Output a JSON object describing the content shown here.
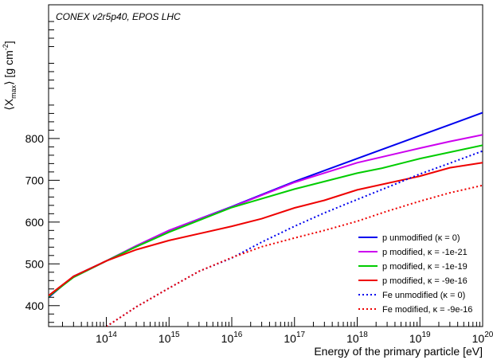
{
  "chart_data": {
    "type": "line",
    "title": "",
    "annotation": "CONEX v2r5p40, EPOS LHC",
    "xlabel": "Energy of the primary particle [eV]",
    "ylabel": "⟨X_max⟩ [g cm⁻²]",
    "ylabel_parts": {
      "open": "⟨X",
      "sub": "max",
      "close": "⟩ [g cm",
      "sup": "-2",
      "end": "]"
    },
    "x_scale": "log",
    "xlim": [
      12000000000000.0,
      1e+20
    ],
    "ylim": [
      350,
      1120
    ],
    "x_ticks": [
      {
        "value": 100000000000000.0,
        "base": "10",
        "exp": "14"
      },
      {
        "value": 1000000000000000.0,
        "base": "10",
        "exp": "15"
      },
      {
        "value": 1e+16,
        "base": "10",
        "exp": "16"
      },
      {
        "value": 1e+17,
        "base": "10",
        "exp": "17"
      },
      {
        "value": 1e+18,
        "base": "10",
        "exp": "18"
      },
      {
        "value": 1e+19,
        "base": "10",
        "exp": "19"
      },
      {
        "value": 1e+20,
        "base": "10",
        "exp": "20"
      }
    ],
    "y_ticks": [
      {
        "value": 400,
        "label": "400"
      },
      {
        "value": 500,
        "label": "500"
      },
      {
        "value": 600,
        "label": "600"
      },
      {
        "value": 700,
        "label": "700"
      },
      {
        "value": 800,
        "label": "800"
      }
    ],
    "grid": false,
    "legend_position": "bottom-right",
    "series": [
      {
        "name": "p unmodified (κ = 0)",
        "color": "#0000ee",
        "dash": "solid",
        "points": [
          [
            12000000000000.0,
            420
          ],
          [
            30000000000000.0,
            470
          ],
          [
            100000000000000.0,
            507
          ],
          [
            300000000000000.0,
            543
          ],
          [
            1000000000000000.0,
            580
          ],
          [
            1e+16,
            637
          ],
          [
            1e+17,
            697
          ],
          [
            1e+18,
            752
          ],
          [
            1e+19,
            807
          ],
          [
            3e+19,
            833
          ],
          [
            1e+20,
            862
          ]
        ]
      },
      {
        "name": "p modified, κ = -1e-21",
        "color": "#cc00ee",
        "dash": "solid",
        "points": [
          [
            12000000000000.0,
            424
          ],
          [
            30000000000000.0,
            468
          ],
          [
            100000000000000.0,
            507
          ],
          [
            300000000000000.0,
            543
          ],
          [
            1000000000000000.0,
            580
          ],
          [
            1e+16,
            636
          ],
          [
            1e+17,
            695
          ],
          [
            1e+18,
            742
          ],
          [
            1e+19,
            777
          ],
          [
            3e+19,
            793
          ],
          [
            1e+20,
            809
          ]
        ]
      },
      {
        "name": "p modified, κ = -1e-19",
        "color": "#00cc00",
        "dash": "solid",
        "points": [
          [
            12000000000000.0,
            422
          ],
          [
            30000000000000.0,
            468
          ],
          [
            100000000000000.0,
            507
          ],
          [
            300000000000000.0,
            541
          ],
          [
            1000000000000000.0,
            576
          ],
          [
            1e+16,
            635
          ],
          [
            1e+17,
            679
          ],
          [
            1e+18,
            717
          ],
          [
            2.5e+18,
            729
          ],
          [
            1e+19,
            752
          ],
          [
            1e+20,
            784
          ]
        ]
      },
      {
        "name": "p modified, κ = -9e-16",
        "color": "#ee0000",
        "dash": "solid",
        "points": [
          [
            12000000000000.0,
            424
          ],
          [
            30000000000000.0,
            470
          ],
          [
            100000000000000.0,
            507
          ],
          [
            300000000000000.0,
            534
          ],
          [
            1000000000000000.0,
            556
          ],
          [
            1e+16,
            590
          ],
          [
            3e+16,
            608
          ],
          [
            1e+17,
            634
          ],
          [
            3e+17,
            652
          ],
          [
            1e+18,
            677
          ],
          [
            1e+19,
            710
          ],
          [
            3e+19,
            730
          ],
          [
            1e+20,
            742
          ]
        ]
      },
      {
        "name": "Fe unmodified (κ = 0)",
        "color": "#0000ee",
        "dash": "dotted",
        "points": [
          [
            100000000000000.0,
            350
          ],
          [
            300000000000000.0,
            397
          ],
          [
            1000000000000000.0,
            442
          ],
          [
            3000000000000000.0,
            482
          ],
          [
            1e+16,
            514
          ],
          [
            3e+16,
            552
          ],
          [
            1e+17,
            590
          ],
          [
            3e+17,
            622
          ],
          [
            1e+18,
            654
          ],
          [
            3e+18,
            683
          ],
          [
            1e+19,
            715
          ],
          [
            3e+19,
            741
          ],
          [
            1e+20,
            770
          ]
        ]
      },
      {
        "name": "Fe modified, κ = -9e-16",
        "color": "#ee0000",
        "dash": "dotted",
        "points": [
          [
            100000000000000.0,
            350
          ],
          [
            300000000000000.0,
            397
          ],
          [
            1000000000000000.0,
            442
          ],
          [
            3000000000000000.0,
            482
          ],
          [
            1e+16,
            515
          ],
          [
            3e+16,
            541
          ],
          [
            1e+17,
            562
          ],
          [
            3e+17,
            580
          ],
          [
            1e+18,
            602
          ],
          [
            3e+18,
            626
          ],
          [
            1e+19,
            650
          ],
          [
            3e+19,
            670
          ],
          [
            1e+20,
            688
          ]
        ]
      }
    ]
  }
}
